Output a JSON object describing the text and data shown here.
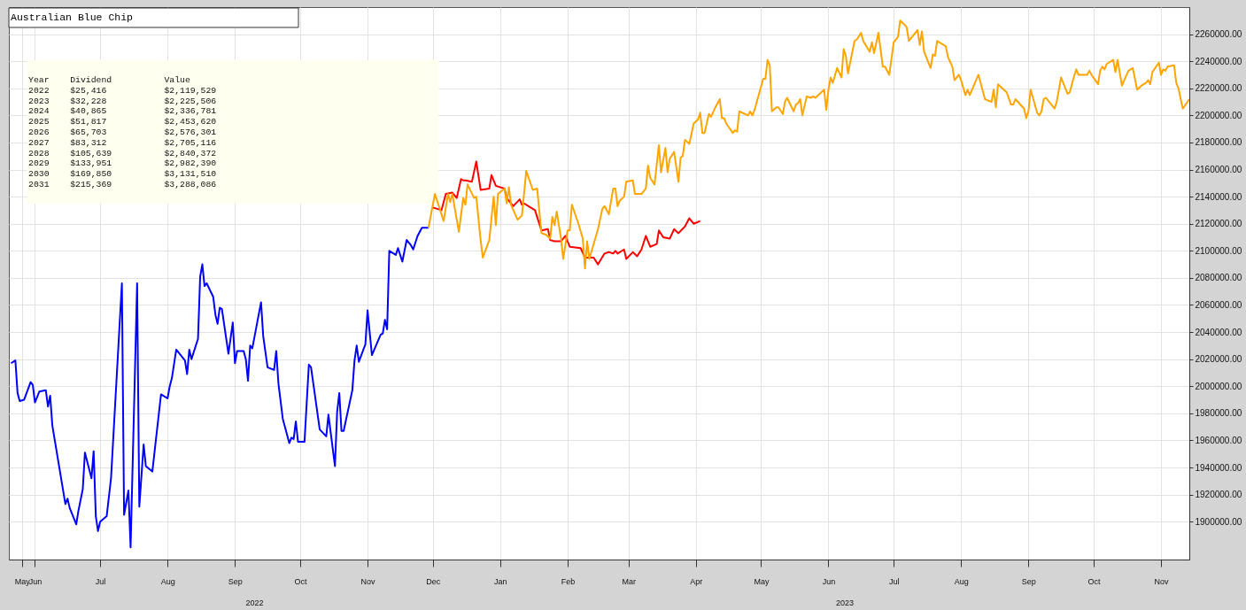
{
  "chart_data": {
    "type": "line",
    "title": "Australian Blue Chip",
    "annotations": [
      "Year    Dividend          Value",
      "2022    $25,416           $2,119,529",
      "2023    $32,228           $2,225,506",
      "2024    $40,865           $2,336,781",
      "2025    $51,817           $2,453,620",
      "2026    $65,703           $2,576,301",
      "2027    $83,312           $2,705,116",
      "2028    $105,639          $2,840,372",
      "2029    $133,951          $2,982,390",
      "2030    $169,850          $3,131,510",
      "2031    $215,369          $3,288,086",
      "2022",
      "2023"
    ],
    "xlim": [
      "2022-05-20",
      "2023-11-14"
    ],
    "xticks": [
      {
        "value": "2022-05-26",
        "label": "May"
      },
      {
        "value": "2022-06-01",
        "label": "Jun"
      },
      {
        "value": "2022-07-01",
        "label": "Jul"
      },
      {
        "value": "2022-08-01",
        "label": "Aug"
      },
      {
        "value": "2022-09-01",
        "label": "Sep"
      },
      {
        "value": "2022-10-01",
        "label": "Oct"
      },
      {
        "value": "2022-11-01",
        "label": "Nov"
      },
      {
        "value": "2022-12-01",
        "label": "Dec"
      },
      {
        "value": "2023-01-01",
        "label": "Jan"
      },
      {
        "value": "2023-02-01",
        "label": "Feb"
      },
      {
        "value": "2023-03-01",
        "label": "Mar"
      },
      {
        "value": "2023-04-01",
        "label": "Apr"
      },
      {
        "value": "2023-05-01",
        "label": "May"
      },
      {
        "value": "2023-06-01",
        "label": "Jun"
      },
      {
        "value": "2023-07-01",
        "label": "Jul"
      },
      {
        "value": "2023-08-01",
        "label": "Aug"
      },
      {
        "value": "2023-09-01",
        "label": "Sep"
      },
      {
        "value": "2023-10-01",
        "label": "Oct"
      },
      {
        "value": "2023-11-01",
        "label": "Nov"
      }
    ],
    "ylim": [
      1872000,
      2280000
    ],
    "yticks": [
      {
        "value": 1900000,
        "label": "1900000.00"
      },
      {
        "value": 1920000,
        "label": "1920000.00"
      },
      {
        "value": 1940000,
        "label": "1940000.00"
      },
      {
        "value": 1960000,
        "label": "1960000.00"
      },
      {
        "value": 1980000,
        "label": "1980000.00"
      },
      {
        "value": 2000000,
        "label": "2000000.00"
      },
      {
        "value": 2020000,
        "label": "2020000.00"
      },
      {
        "value": 2040000,
        "label": "2040000.00"
      },
      {
        "value": 2060000,
        "label": "2060000.00"
      },
      {
        "value": 2080000,
        "label": "2080000.00"
      },
      {
        "value": 2100000,
        "label": "2100000.00"
      },
      {
        "value": 2120000,
        "label": "2120000.00"
      },
      {
        "value": 2140000,
        "label": "2140000.00"
      },
      {
        "value": 2160000,
        "label": "2160000.00"
      },
      {
        "value": 2180000,
        "label": "2180000.00"
      },
      {
        "value": 2200000,
        "label": "2200000.00"
      },
      {
        "value": 2220000,
        "label": "2220000.00"
      },
      {
        "value": 2240000,
        "label": "2240000.00"
      },
      {
        "value": 2260000,
        "label": "2260000.00"
      }
    ],
    "grid": true,
    "series": [
      {
        "color": "#0000ff",
        "x": [
          "2022-05-21",
          "2022-05-23",
          "2022-05-24",
          "2022-05-25",
          "2022-05-27",
          "2022-05-30",
          "2022-05-31",
          "2022-06-01",
          "2022-06-03",
          "2022-06-06",
          "2022-06-07",
          "2022-06-08",
          "2022-06-09",
          "2022-06-15",
          "2022-06-16",
          "2022-06-17",
          "2022-06-20",
          "2022-06-21",
          "2022-06-23",
          "2022-06-24",
          "2022-06-27",
          "2022-06-28",
          "2022-06-29",
          "2022-06-30",
          "2022-07-01",
          "2022-07-04",
          "2022-07-06",
          "2022-07-11",
          "2022-07-12",
          "2022-07-14",
          "2022-07-15",
          "2022-07-18",
          "2022-07-19",
          "2022-07-21",
          "2022-07-22",
          "2022-07-25",
          "2022-07-29",
          "2022-08-01",
          "2022-08-02",
          "2022-08-03",
          "2022-08-05",
          "2022-08-09",
          "2022-08-10",
          "2022-08-11",
          "2022-08-12",
          "2022-08-15",
          "2022-08-16",
          "2022-08-17",
          "2022-08-18",
          "2022-08-19",
          "2022-08-22",
          "2022-08-23",
          "2022-08-24",
          "2022-08-25",
          "2022-08-26",
          "2022-08-29",
          "2022-08-31",
          "2022-09-01",
          "2022-09-02",
          "2022-09-05",
          "2022-09-06",
          "2022-09-07",
          "2022-09-08",
          "2022-09-09",
          "2022-09-13",
          "2022-09-14",
          "2022-09-16",
          "2022-09-19",
          "2022-09-20",
          "2022-09-21",
          "2022-09-23",
          "2022-09-26",
          "2022-09-27",
          "2022-09-28",
          "2022-09-29",
          "2022-09-30",
          "2022-10-03",
          "2022-10-05",
          "2022-10-06",
          "2022-10-10",
          "2022-10-13",
          "2022-10-14",
          "2022-10-17",
          "2022-10-18",
          "2022-10-19",
          "2022-10-20",
          "2022-10-21",
          "2022-10-25",
          "2022-10-26",
          "2022-10-27",
          "2022-10-28",
          "2022-10-31",
          "2022-11-01",
          "2022-11-03",
          "2022-11-07",
          "2022-11-08",
          "2022-11-09",
          "2022-11-10",
          "2022-11-11",
          "2022-11-14",
          "2022-11-15",
          "2022-11-17",
          "2022-11-19",
          "2022-11-21",
          "2022-11-22",
          "2022-11-24",
          "2022-11-26",
          "2022-11-29"
        ],
        "values": [
          2017000,
          2019000,
          1995000,
          1989000,
          1990000,
          2003000,
          2001000,
          1988000,
          1996000,
          1997000,
          1985000,
          1993000,
          1971000,
          1913000,
          1917000,
          1910000,
          1898000,
          1908000,
          1924000,
          1951000,
          1932000,
          1952000,
          1904000,
          1893000,
          1900000,
          1904000,
          1932000,
          2076000,
          1905000,
          1923000,
          1881000,
          2076000,
          1911000,
          1957000,
          1941000,
          1937000,
          1994000,
          1991000,
          2000000,
          2006000,
          2027000,
          2019000,
          2009000,
          2027000,
          2020000,
          2035000,
          2081000,
          2090000,
          2074000,
          2076000,
          2066000,
          2053000,
          2046000,
          2058000,
          2057000,
          2024000,
          2047000,
          2017000,
          2026000,
          2026000,
          2020000,
          2004000,
          2030000,
          2028000,
          2062000,
          2037000,
          2014000,
          2012000,
          2026000,
          2002000,
          1976000,
          1958000,
          1962000,
          1961000,
          1974000,
          1959000,
          1959000,
          2016000,
          2014000,
          1968000,
          1963000,
          1979000,
          1941000,
          1981000,
          1995000,
          1967000,
          1967000,
          1997000,
          2019000,
          2030000,
          2018000,
          2031000,
          2056000,
          2023000,
          2038000,
          2039000,
          2049000,
          2042000,
          2100000,
          2097000,
          2102000,
          2092000,
          2108000,
          2104000,
          2101000,
          2111000,
          2117000,
          2117000
        ]
      },
      {
        "color": "#ff0000",
        "x": [
          "2022-12-01",
          "2022-12-05",
          "2022-12-07",
          "2022-12-10",
          "2022-12-12",
          "2022-12-14",
          "2022-12-15",
          "2022-12-16",
          "2022-12-19",
          "2022-12-21",
          "2022-12-23",
          "2022-12-27",
          "2022-12-28",
          "2022-12-30",
          "2023-01-03",
          "2023-01-04",
          "2023-01-07",
          "2023-01-10",
          "2023-01-11",
          "2023-01-12",
          "2023-01-14",
          "2023-01-17",
          "2023-01-20",
          "2023-01-23",
          "2023-01-24",
          "2023-01-26",
          "2023-01-29",
          "2023-01-31",
          "2023-02-02",
          "2023-02-07",
          "2023-02-09",
          "2023-02-13",
          "2023-02-15",
          "2023-02-18",
          "2023-02-20",
          "2023-02-22",
          "2023-02-23",
          "2023-02-24",
          "2023-02-27",
          "2023-02-28",
          "2023-03-03",
          "2023-03-05",
          "2023-03-07",
          "2023-03-09",
          "2023-03-11",
          "2023-03-14",
          "2023-03-15",
          "2023-03-17",
          "2023-03-20",
          "2023-03-22",
          "2023-03-24",
          "2023-03-27",
          "2023-03-29",
          "2023-03-31",
          "2023-04-03"
        ],
        "values": [
          2132000,
          2130000,
          2142000,
          2143000,
          2139000,
          2153000,
          2152000,
          2152000,
          2151000,
          2166000,
          2145000,
          2146000,
          2156000,
          2148000,
          2146000,
          2139000,
          2133000,
          2138000,
          2134000,
          2135000,
          2133000,
          2130000,
          2115000,
          2116000,
          2108000,
          2107000,
          2107000,
          2111000,
          2103000,
          2102000,
          2095000,
          2095000,
          2090000,
          2098000,
          2099000,
          2098000,
          2100000,
          2098000,
          2101000,
          2094000,
          2099000,
          2096000,
          2101000,
          2111000,
          2103000,
          2105000,
          2115000,
          2110000,
          2109000,
          2116000,
          2113000,
          2118000,
          2124000,
          2120000,
          2122000
        ]
      },
      {
        "color": "#ffa500",
        "x": [
          "2022-11-29",
          "2022-12-02",
          "2022-12-06",
          "2022-12-08",
          "2022-12-09",
          "2022-12-10",
          "2022-12-13",
          "2022-12-15",
          "2022-12-16",
          "2022-12-17",
          "2022-12-20",
          "2022-12-21",
          "2022-12-23",
          "2022-12-24",
          "2022-12-27",
          "2022-12-29",
          "2022-12-30",
          "2022-12-31",
          "2023-01-03",
          "2023-01-04",
          "2023-01-05",
          "2023-01-06",
          "2023-01-09",
          "2023-01-11",
          "2023-01-13",
          "2023-01-16",
          "2023-01-18",
          "2023-01-20",
          "2023-01-22",
          "2023-01-24",
          "2023-01-25",
          "2023-01-26",
          "2023-01-27",
          "2023-01-29",
          "2023-01-30",
          "2023-02-01",
          "2023-02-02",
          "2023-02-03",
          "2023-02-06",
          "2023-02-08",
          "2023-02-09",
          "2023-02-10",
          "2023-02-11",
          "2023-02-15",
          "2023-02-17",
          "2023-02-18",
          "2023-02-20",
          "2023-02-22",
          "2023-02-23",
          "2023-02-24",
          "2023-02-25",
          "2023-02-27",
          "2023-02-28",
          "2023-03-03",
          "2023-03-04",
          "2023-03-07",
          "2023-03-09",
          "2023-03-10",
          "2023-03-11",
          "2023-03-13",
          "2023-03-15",
          "2023-03-16",
          "2023-03-18",
          "2023-03-19",
          "2023-03-20",
          "2023-03-22",
          "2023-03-24",
          "2023-03-25",
          "2023-03-26",
          "2023-03-27",
          "2023-03-29",
          "2023-03-31",
          "2023-04-02",
          "2023-04-03",
          "2023-04-04",
          "2023-04-05",
          "2023-04-07",
          "2023-04-08",
          "2023-04-10",
          "2023-04-12",
          "2023-04-13",
          "2023-04-14",
          "2023-04-15",
          "2023-04-18",
          "2023-04-19",
          "2023-04-20",
          "2023-04-21",
          "2023-04-25",
          "2023-04-26",
          "2023-04-27",
          "2023-04-28",
          "2023-05-02",
          "2023-05-03",
          "2023-05-04",
          "2023-05-05",
          "2023-05-06",
          "2023-05-08",
          "2023-05-09",
          "2023-05-11",
          "2023-05-12",
          "2023-05-13",
          "2023-05-16",
          "2023-05-17",
          "2023-05-18",
          "2023-05-19",
          "2023-05-20",
          "2023-05-22",
          "2023-05-24",
          "2023-05-25",
          "2023-05-26",
          "2023-05-30",
          "2023-05-31",
          "2023-06-01",
          "2023-06-02",
          "2023-06-03",
          "2023-06-05",
          "2023-06-07",
          "2023-06-08",
          "2023-06-09",
          "2023-06-10",
          "2023-06-13",
          "2023-06-14",
          "2023-06-16",
          "2023-06-17",
          "2023-06-20",
          "2023-06-21",
          "2023-06-22",
          "2023-06-24",
          "2023-06-26",
          "2023-06-27",
          "2023-06-29",
          "2023-07-01",
          "2023-07-03",
          "2023-07-04",
          "2023-07-06",
          "2023-07-07",
          "2023-07-08",
          "2023-07-12",
          "2023-07-13",
          "2023-07-14",
          "2023-07-15",
          "2023-07-18",
          "2023-07-19",
          "2023-07-20",
          "2023-07-21",
          "2023-07-25",
          "2023-07-26",
          "2023-07-28",
          "2023-07-29",
          "2023-07-31",
          "2023-08-01",
          "2023-08-03",
          "2023-08-04",
          "2023-08-05",
          "2023-08-09",
          "2023-08-10",
          "2023-08-12",
          "2023-08-15",
          "2023-08-16",
          "2023-08-17",
          "2023-08-18",
          "2023-08-22",
          "2023-08-24",
          "2023-08-25",
          "2023-08-26",
          "2023-08-30",
          "2023-08-31",
          "2023-09-01",
          "2023-09-02",
          "2023-09-05",
          "2023-09-06",
          "2023-09-07",
          "2023-09-08",
          "2023-09-09",
          "2023-09-13",
          "2023-09-14",
          "2023-09-16",
          "2023-09-19",
          "2023-09-20",
          "2023-09-22",
          "2023-09-23",
          "2023-09-24",
          "2023-09-26",
          "2023-09-28",
          "2023-09-29",
          "2023-09-30",
          "2023-10-03",
          "2023-10-04",
          "2023-10-05",
          "2023-10-06",
          "2023-10-07",
          "2023-10-10",
          "2023-10-11",
          "2023-10-12",
          "2023-10-14",
          "2023-10-17",
          "2023-10-19",
          "2023-10-21",
          "2023-10-23",
          "2023-10-25",
          "2023-10-26",
          "2023-10-27",
          "2023-10-28",
          "2023-10-31",
          "2023-11-01",
          "2023-11-02",
          "2023-11-03",
          "2023-11-04",
          "2023-11-07",
          "2023-11-08",
          "2023-11-09",
          "2023-11-11",
          "2023-11-14"
        ],
        "values": [
          2117000,
          2142000,
          2122000,
          2142000,
          2136000,
          2142000,
          2114000,
          2139000,
          2134000,
          2149000,
          2139000,
          2140000,
          2108000,
          2095000,
          2108000,
          2140000,
          2119000,
          2142000,
          2146000,
          2135000,
          2147000,
          2134000,
          2123000,
          2126000,
          2159000,
          2145000,
          2146000,
          2113000,
          2112000,
          2109000,
          2125000,
          2119000,
          2129000,
          2109000,
          2094000,
          2115000,
          2115000,
          2134000,
          2120000,
          2109000,
          2087000,
          2107000,
          2094000,
          2116000,
          2131000,
          2133000,
          2127000,
          2146000,
          2146000,
          2133000,
          2137000,
          2140000,
          2151000,
          2152000,
          2142000,
          2142000,
          2146000,
          2163000,
          2154000,
          2149000,
          2178000,
          2158000,
          2176000,
          2158000,
          2168000,
          2173000,
          2151000,
          2169000,
          2170000,
          2182000,
          2179000,
          2194000,
          2197000,
          2202000,
          2187000,
          2187000,
          2201000,
          2199000,
          2206000,
          2212000,
          2198000,
          2198000,
          2194000,
          2187000,
          2189000,
          2188000,
          2203000,
          2200000,
          2203000,
          2200000,
          2204000,
          2227000,
          2227000,
          2241000,
          2237000,
          2203000,
          2206000,
          2206000,
          2201000,
          2210000,
          2213000,
          2203000,
          2208000,
          2209000,
          2212000,
          2200000,
          2214000,
          2213000,
          2214000,
          2213000,
          2219000,
          2204000,
          2219000,
          2228000,
          2224000,
          2235000,
          2228000,
          2249000,
          2244000,
          2231000,
          2255000,
          2256000,
          2261000,
          2255000,
          2247000,
          2254000,
          2246000,
          2261000,
          2236000,
          2236000,
          2230000,
          2254000,
          2258000,
          2270000,
          2267000,
          2265000,
          2255000,
          2263000,
          2252000,
          2262000,
          2247000,
          2235000,
          2245000,
          2244000,
          2255000,
          2251000,
          2243000,
          2236000,
          2226000,
          2230000,
          2226000,
          2215000,
          2219000,
          2215000,
          2230000,
          2224000,
          2212000,
          2210000,
          2219000,
          2206000,
          2223000,
          2217000,
          2208000,
          2208000,
          2212000,
          2205000,
          2198000,
          2203000,
          2219000,
          2202000,
          2200000,
          2203000,
          2212000,
          2213000,
          2205000,
          2210000,
          2228000,
          2216000,
          2217000,
          2229000,
          2234000,
          2230000,
          2230000,
          2230000,
          2233000,
          2230000,
          2223000,
          2233000,
          2236000,
          2234000,
          2238000,
          2241000,
          2232000,
          2241000,
          2222000,
          2233000,
          2235000,
          2219000,
          2222000,
          2224000,
          2226000,
          2223000,
          2232000,
          2239000,
          2230000,
          2234000,
          2233000,
          2236000,
          2237000,
          2224000,
          2220000,
          2205000,
          2212000
        ]
      }
    ]
  }
}
